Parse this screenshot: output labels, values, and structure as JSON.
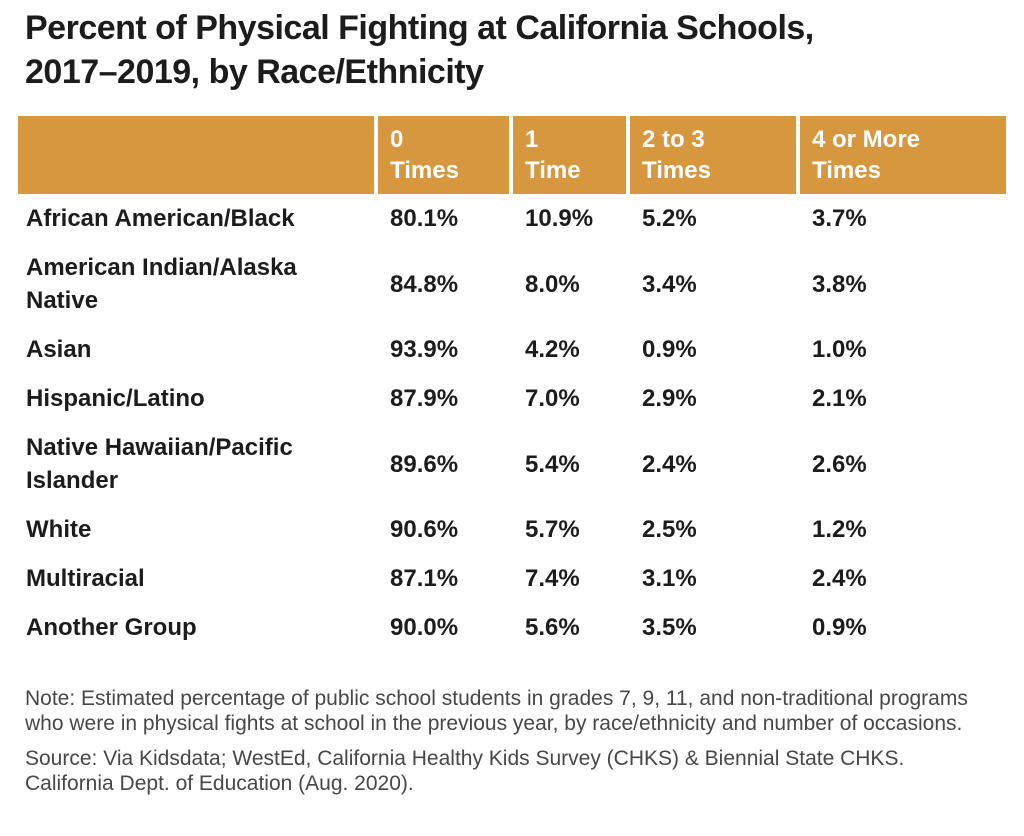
{
  "title": "Percent of Physical Fighting at California Schools,\n2017–2019, by Race/Ethnicity",
  "table": {
    "header_bg": "#D6973E",
    "header_text_color": "#FFFFFF",
    "columns": [
      "0\nTimes",
      "1\nTime",
      "2 to 3\nTimes",
      "4 or More\nTimes"
    ],
    "rows": [
      {
        "label": "African American/Black",
        "values": [
          "80.1%",
          "10.9%",
          "5.2%",
          "3.7%"
        ]
      },
      {
        "label": "American Indian/Alaska\nNative",
        "values": [
          "84.8%",
          "8.0%",
          "3.4%",
          "3.8%"
        ]
      },
      {
        "label": "Asian",
        "values": [
          "93.9%",
          "4.2%",
          "0.9%",
          "1.0%"
        ]
      },
      {
        "label": "Hispanic/Latino",
        "values": [
          "87.9%",
          "7.0%",
          "2.9%",
          "2.1%"
        ]
      },
      {
        "label": "Native Hawaiian/Pacific\nIslander",
        "values": [
          "89.6%",
          "5.4%",
          "2.4%",
          "2.6%"
        ]
      },
      {
        "label": "White",
        "values": [
          "90.6%",
          "5.7%",
          "2.5%",
          "1.2%"
        ]
      },
      {
        "label": "Multiracial",
        "values": [
          "87.1%",
          "7.4%",
          "3.1%",
          "2.4%"
        ]
      },
      {
        "label": "Another Group",
        "values": [
          "90.0%",
          "5.6%",
          "3.5%",
          "0.9%"
        ]
      }
    ]
  },
  "note": "Note: Estimated percentage of public school students in grades 7, 9, 11, and non-traditional programs who were in physical fights at school in the previous year, by race/ethnicity and number of occasions.",
  "source": "Source: Via Kidsdata; WestEd, California Healthy Kids Survey (CHKS) & Biennial State CHKS. California Dept. of Education (Aug. 2020).",
  "chart_data": {
    "type": "table",
    "title": "Percent of Physical Fighting at California Schools, 2017–2019, by Race/Ethnicity",
    "columns": [
      "0 Times",
      "1 Time",
      "2 to 3 Times",
      "4 or More Times"
    ],
    "categories": [
      "African American/Black",
      "American Indian/Alaska Native",
      "Asian",
      "Hispanic/Latino",
      "Native Hawaiian/Pacific Islander",
      "White",
      "Multiracial",
      "Another Group"
    ],
    "series": [
      {
        "name": "0 Times",
        "values": [
          80.1,
          84.8,
          93.9,
          87.9,
          89.6,
          90.6,
          87.1,
          90.0
        ]
      },
      {
        "name": "1 Time",
        "values": [
          10.9,
          8.0,
          4.2,
          7.0,
          5.4,
          5.7,
          7.4,
          5.6
        ]
      },
      {
        "name": "2 to 3 Times",
        "values": [
          5.2,
          3.4,
          0.9,
          2.9,
          2.4,
          2.5,
          3.1,
          3.5
        ]
      },
      {
        "name": "4 or More Times",
        "values": [
          3.7,
          3.8,
          1.0,
          2.1,
          2.6,
          1.2,
          2.4,
          0.9
        ]
      }
    ],
    "unit": "%",
    "accent_color": "#D6973E",
    "note": "Estimated percentage of public school students in grades 7, 9, 11, and non-traditional programs who were in physical fights at school in the previous year, by race/ethnicity and number of occasions.",
    "source": "Via Kidsdata; WestEd, California Healthy Kids Survey (CHKS) & Biennial State CHKS. California Dept. of Education (Aug. 2020)."
  }
}
